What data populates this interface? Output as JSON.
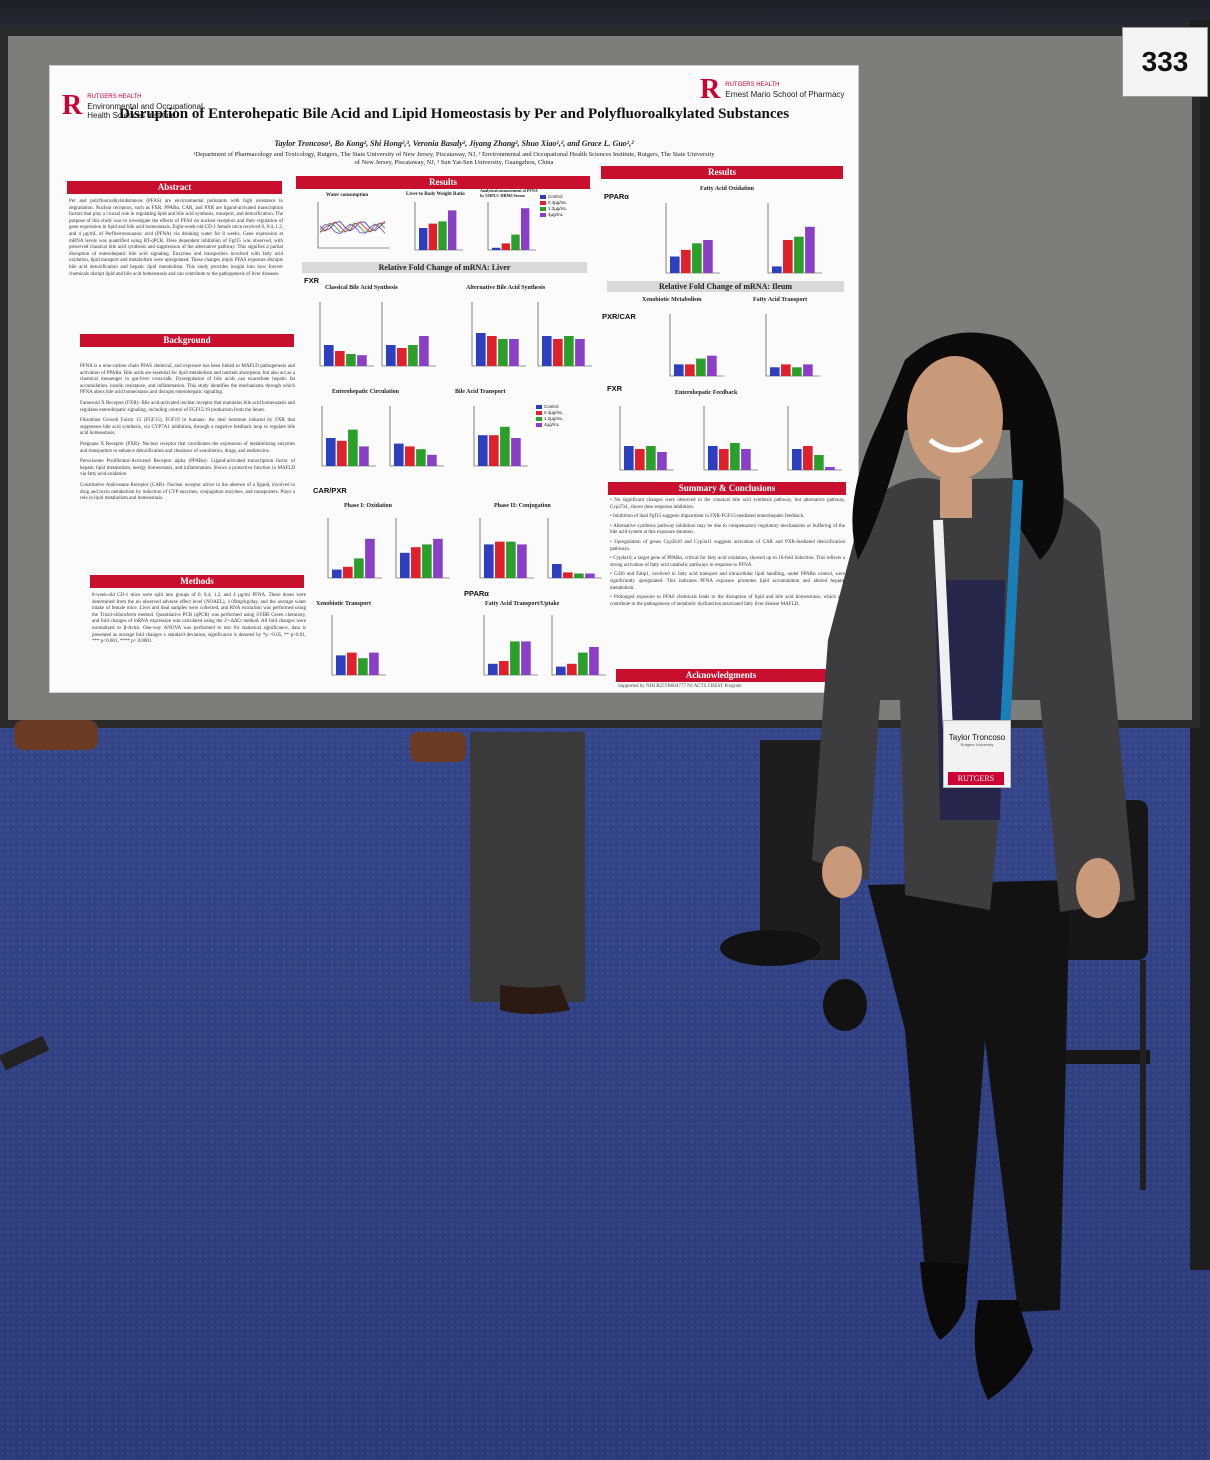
{
  "booth_number": "333",
  "poster": {
    "logo_left": {
      "top": "RUTGERS HEALTH",
      "line1": "Environmental and Occupational",
      "line2": "Health Sciences Institute"
    },
    "logo_right": {
      "top": "RUTGERS HEALTH",
      "line1": "Ernest Mario School of Pharmacy"
    },
    "title": "Disruption of Enterohepatic Bile Acid and Lipid Homeostasis by Per and Polyfluoroalkylated Substances",
    "authors": "Taylor Troncoso¹, Bo Kong², Shi Hong²,³, Veronia Basaly², Jiyang Zhang², Shuo Xiao¹,², and Grace L. Guo¹,²",
    "affiliation_1": "¹Department of Pharmacology and Toxicology, Rutgers, The State University of New Jersey, Piscataway, NJ, ² Environmental and Occupational Health Sciences Institute, Rutgers, The State University",
    "affiliation_2": "of New Jersey, Piscataway, NJ, ³ Sun Yat-Sen University, Guangzhou, China",
    "abstract": {
      "heading": "Abstract",
      "text": "Per and polyfluoroalkylsubstances (PFAS) are environmental pollutants with high resistance to degradation. Nuclear receptors, such as FXR, PPARα, CAR, and PXR are ligand-activated transcription factors that play a crucial role in regulating lipid and bile acid synthesis, transport, and detoxification. The purpose of this study was to investigate the effects of PFAS on nuclear receptors and their regulation of gene expression in lipid and bile acid homeostasis. Eight-week-old CD-1 female mice received 0, 0.4, 1.2, and 4 µg/mL of Perfluorononanoic acid (PFNA) via drinking water for 8 weeks. Gene expression at mRNA levels was quantified using RT-qPCR. Dose dependent inhibition of Fgf15 was observed, with preserved classical bile acid synthesis and suppression of the alternative pathway. This signifies a partial disruption of enterohepatic bile acid signaling. Enzymes and transporters involved with fatty acid oxidation, lipid transport and metabolism were upregulated. These changes imply PFAS exposure disrupts bile acid detoxification and hepatic lipid metabolism. This study provides insight into how forever chemicals disrupt lipid and bile acid homeostasis and can contribute to the pathogenesis of liver diseases."
    },
    "background": {
      "heading": "Background",
      "p1": "PFNA is a nine-carbon chain PFAS chemical, and exposure has been linked to MAFLD pathogenesis and activation of PPARα. Bile acids are essential for lipid metabolism and nutrient absorption, but also act as a chemical messenger in gut-liver cross-talk. Dysregulation of bile acids can exacerbate hepatic fat accumulation, insulin resistance, and inflammation. This study identifies the mechanisms through which PFNA alters bile acid homeostasis and disrupts enterohepatic signaling.",
      "p2": "Farnesoid X Receptor (FXR)- Bile acid-activated nuclear receptor that maintains bile acid homeostasis and regulates enterohepatic signaling, including control of FGF15/19 production from the ileum.",
      "p3": "Fibroblast Growth Factor 15 (FGF15), FGF19 in humans- An ileal hormone induced by FXR that suppresses bile acid synthesis, via CYP7A1 inhibition, through a negative feedback loop to regulate bile acid homeostasis.",
      "p4": "Pregnane X Receptor (PXR)- Nuclear receptor that coordinates the expression of metabolizing enzymes and transporters to enhance detoxification and clearance of xenobiotics, drugs, and endotoxins.",
      "p5": "Peroxisome Proliferator-Activated Receptor alpha (PPARα)- Ligand-activated transcription factor of hepatic lipid metabolism, energy homeostasis, and inflammation. Shows a protective function in MAFLD via fatty acid oxidation",
      "p6": "Constitutive Androstane Receptor (CAR)- Nuclear receptor active in the absence of a ligand, involved in drug and toxin metabolism by induction of CYP enzymes, conjugation enzymes, and transporters. Plays a role in lipid metabolism and homeostasis."
    },
    "methods": {
      "heading": "Methods",
      "text": "8-week-old CD-1 mice were split into groups of 0, 0.4, 1.2, and 4 µg/ml PFNA. These doses were determined from the no observed adverse effect level (NOAEL), 1.09mg/kg/day, and the average water intake of female mice. Liver and ileal samples were collected, and RNA extraction was performed using the Trizol-chloroform method. Quantitative PCR (qPCR) was performed using SYBR Green chemistry, and fold changes of mRNA expression was calculated using the 2^-ΔΔCt method. All fold changes were normalized to β-Actin. One-way ANOVA was performed to test for statistical significance, data is presented as average fold changes ± standard deviation, significance is denoted by *p <0.05, ** p<0.01, *** p<0.001, **** p< 0.0001."
    },
    "results_mid": {
      "heading": "Results",
      "top_charts": [
        "Water consumption",
        "Liver to Body Weight Ratio",
        "Analytical measurement of PFNA by UHPLC-HRMS Serum"
      ],
      "liver_heading": "Relative Fold Change of mRNA: Liver",
      "fxr": "FXR",
      "classical": "Classical Bile Acid Synthesis",
      "alternative": "Alternative Bile Acid Synthesis",
      "enterohepatic": "Enterohepatic Circulation",
      "transport": "Bile Acid Transport",
      "carpxr": "CAR/PXR",
      "phase1": "Phase I: Oxidation",
      "phase2": "Phase II: Conjugation",
      "xeno": "Xenobiotic Transport",
      "ppara": "PPARα",
      "fatp": "Fatty Acid Transport/Uptake"
    },
    "results_right": {
      "heading": "Results",
      "ppara": "PPARα",
      "fao": "Fatty Acid Oxidation",
      "ileum_heading": "Relative Fold Change of mRNA: Ileum",
      "xeno": "Xenobiotic Metabolism",
      "fat": "Fatty Acid Transport",
      "pxrcar": "PXR/CAR",
      "fxr": "FXR",
      "feedback": "Enterohepatic Feedback"
    },
    "legend": [
      "Control",
      "0.4µg/mL",
      "1.2µg/mL",
      "4µg/mL"
    ],
    "summary": {
      "heading": "Summary & Conclusions",
      "items": [
        "No significant changes were observed in the classical bile acid synthesis pathway, but alternative pathway, Cyp27a1, shows dose response inhibition.",
        "Inhibition of ileal Fgf15 suggests impairment in FXR-FGF15-mediated enterohepatic feedback.",
        "Alternative synthesis pathway inhibition may be due to compensatory regulatory mechanisms or buffering of the bile acid system at this exposure duration.",
        "Upregulation of genes Cyp2b10 and Cyp3a11 suggests activation of CAR and PXR-mediated detoxification pathways.",
        "Cyp4a10, a target gene of PPARα, critical for fatty acid oxidation, showed up to 16-fold induction. This reflects a strong activation of fatty acid catabolic pathways in response to PFNA.",
        "Cd36 and Fabp1, involved in fatty acid transport and intracellular lipid handling, under PPARα control, were significantly upregulated. This indicates PFNA exposure promotes lipid accumulation and altered hepatic metabolism.",
        "Prolonged exposure to PFAS chemicals leads to the disruption of lipid and bile acid homeostasis, which can contribute to the pathogenesis of metabolic dysfunction associated fatty liver disease MAFLD."
      ]
    },
    "acknowledgments": {
      "heading": "Acknowledgments",
      "text": "Supported by NIH R25TR004777 NJ ACTS CREST Program"
    }
  },
  "badge": {
    "name": "Taylor Troncoso",
    "org": "Rutgers University",
    "brand": "RUTGERS"
  },
  "colors": {
    "rutgers_red": "#c8102e",
    "control": "#2b3fbf",
    "dose_low": "#e0202a",
    "dose_mid": "#2aa02a",
    "dose_high": "#8a3fc6"
  }
}
